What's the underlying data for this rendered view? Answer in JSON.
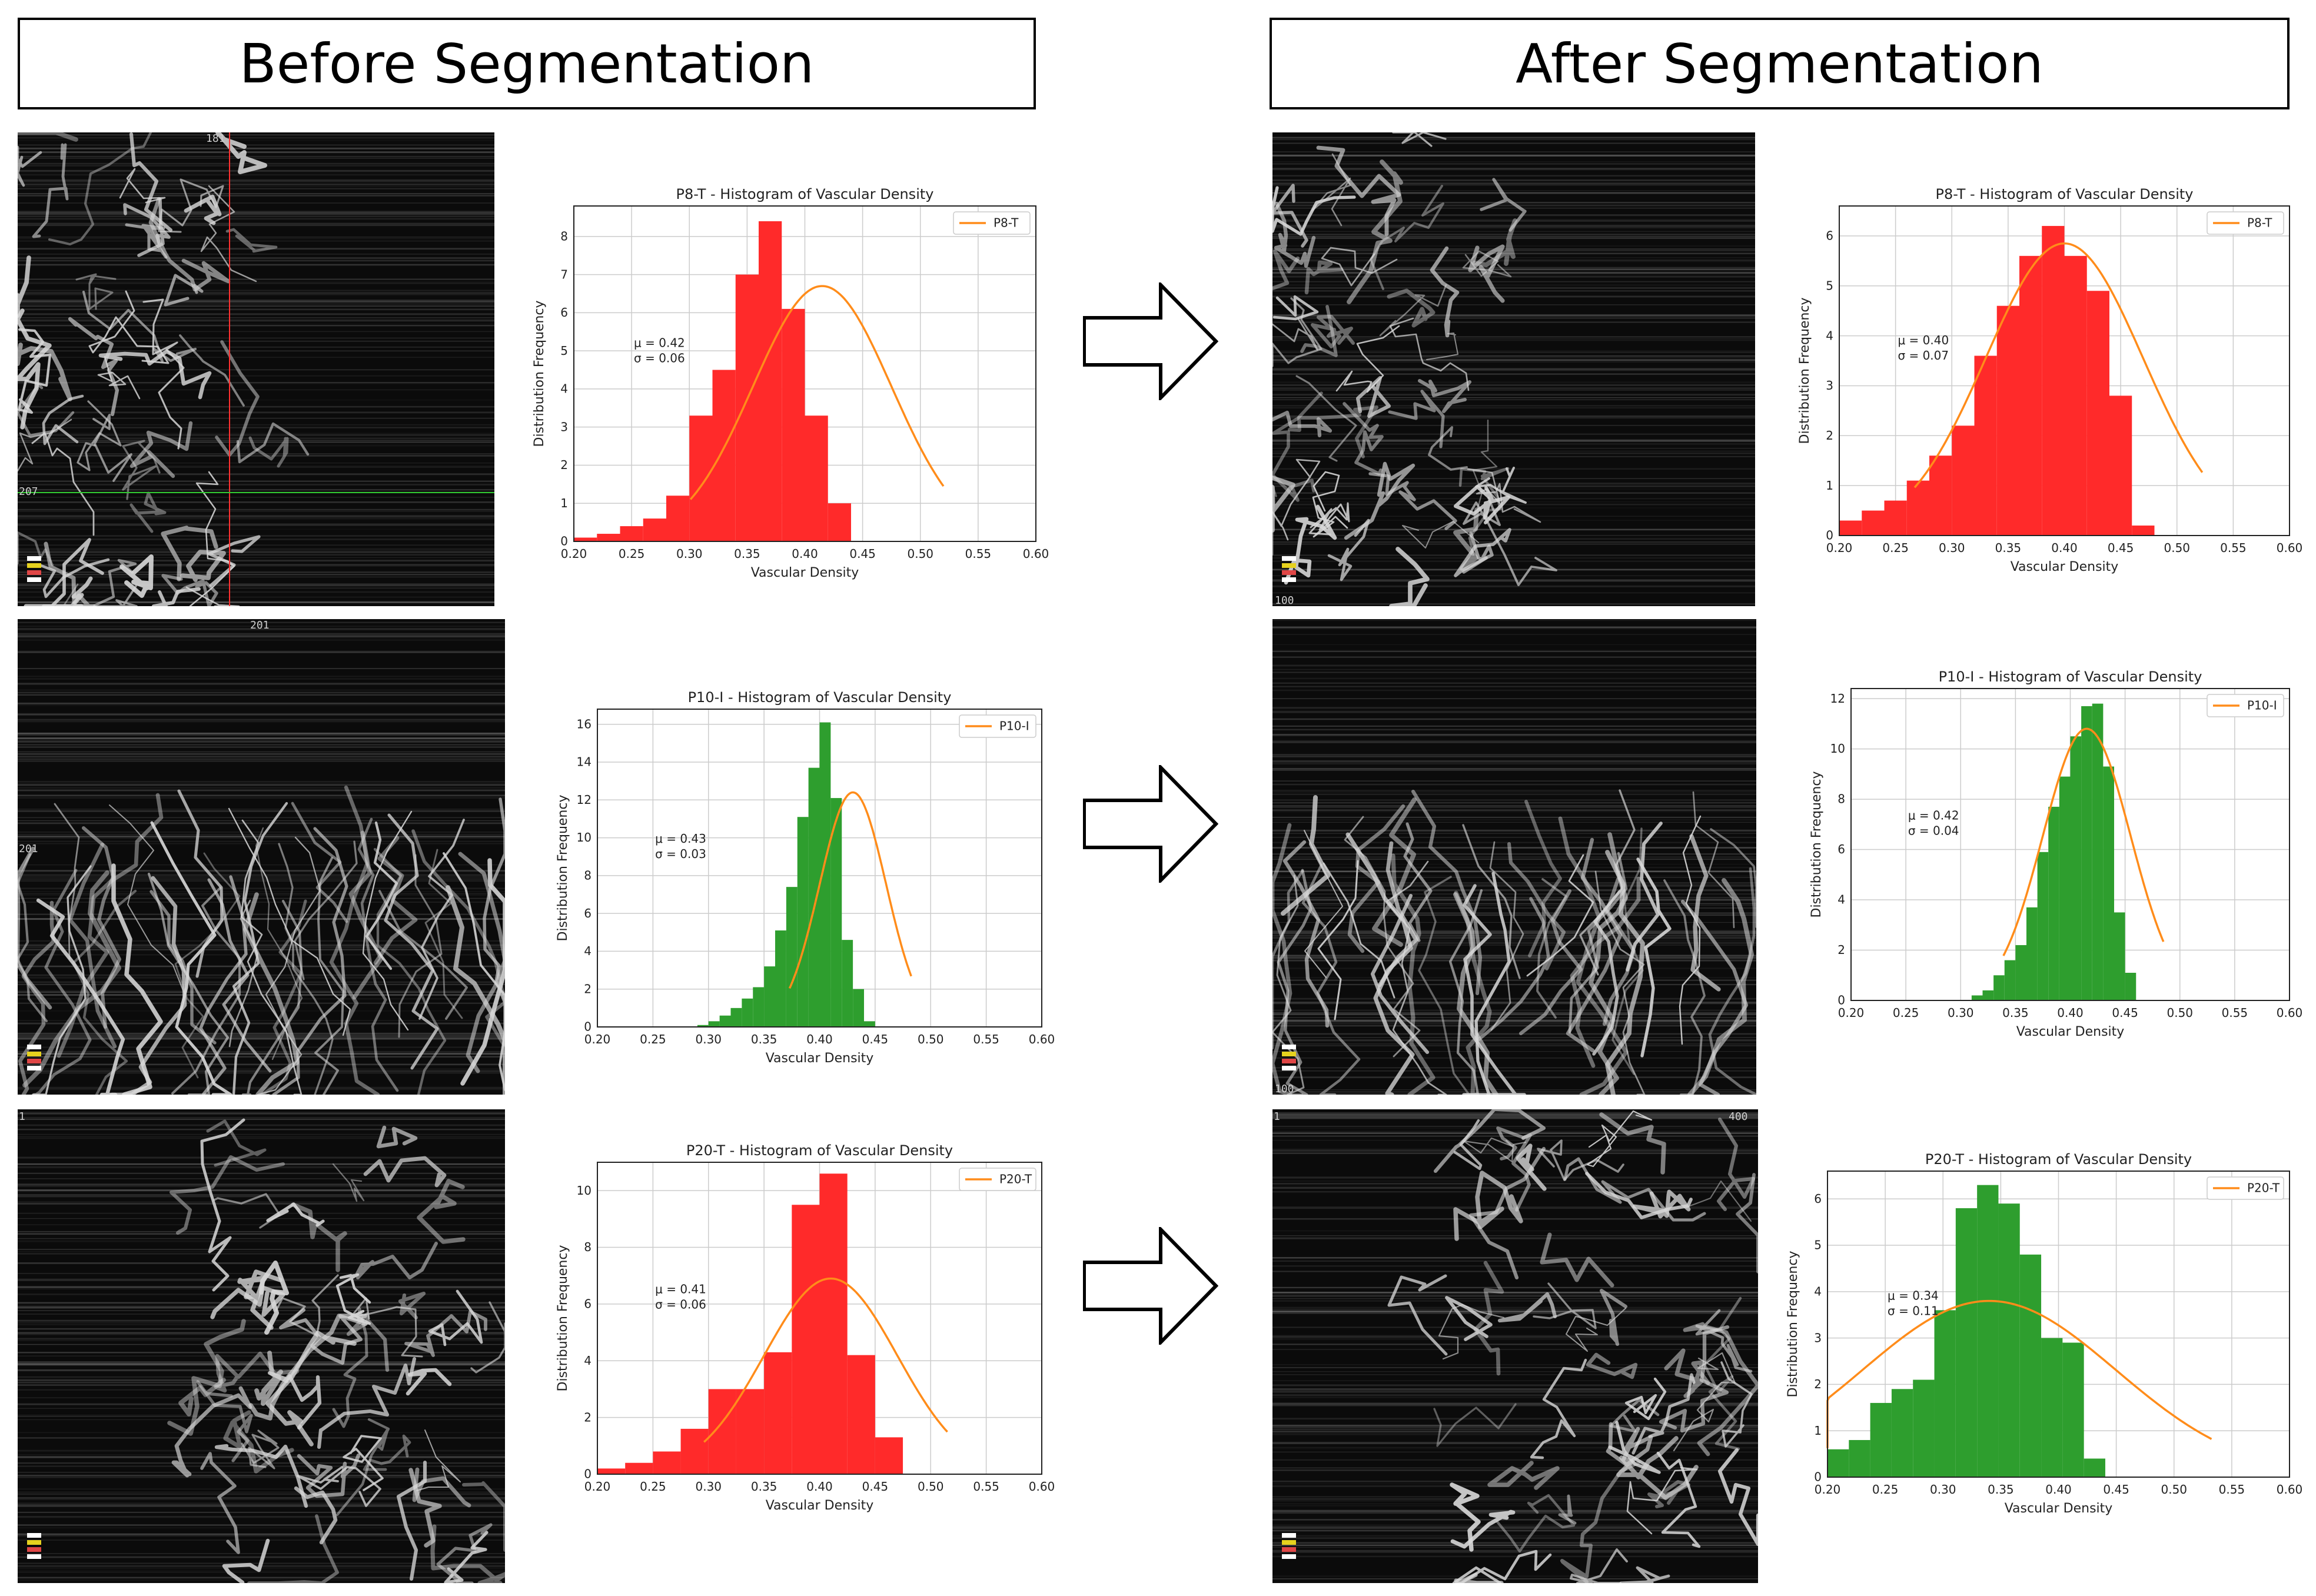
{
  "headers": {
    "before": "Before Segmentation",
    "after": "After Segmentation"
  },
  "colors": {
    "red": "#ff2a2a",
    "green": "#2e9e2e",
    "fit": "#ff8c1a",
    "grid": "#cccccc"
  },
  "images": [
    {
      "key": "b1",
      "labels": [
        "181",
        "207"
      ]
    },
    {
      "key": "b2",
      "labels": [
        "201",
        "201"
      ]
    },
    {
      "key": "b3",
      "labels": [
        "1"
      ]
    },
    {
      "key": "a1",
      "labels": [
        "100"
      ]
    },
    {
      "key": "a2",
      "labels": [
        "100"
      ]
    },
    {
      "key": "a3",
      "labels": [
        "1",
        "400"
      ]
    }
  ],
  "chart_data": [
    {
      "id": "b1",
      "type": "bar",
      "title": "P8-T - Histogram of Vascular Density",
      "legend": "P8-T",
      "xlabel": "Vascular Density",
      "ylabel": "Distribution Frequency",
      "xlim": [
        0.2,
        0.6
      ],
      "ylim": [
        0,
        8.8
      ],
      "xticks": [
        "0.20",
        "0.25",
        "0.30",
        "0.35",
        "0.40",
        "0.45",
        "0.50",
        "0.55",
        "0.60"
      ],
      "yticks": [
        "0",
        "1",
        "2",
        "3",
        "4",
        "5",
        "6",
        "7",
        "8"
      ],
      "bin_start": 0.2,
      "bin_width": 0.02,
      "color": "red",
      "values": [
        0.1,
        0.2,
        0.4,
        0.6,
        1.2,
        3.3,
        4.5,
        7.0,
        8.4,
        6.1,
        3.3,
        1.0
      ],
      "mu": 0.415,
      "sigma": 0.06,
      "peak": 6.7,
      "stats": [
        "μ = 0.42",
        "σ = 0.06"
      ]
    },
    {
      "id": "a1",
      "type": "bar",
      "title": "P8-T - Histogram of Vascular Density",
      "legend": "P8-T",
      "xlabel": "Vascular Density",
      "ylabel": "Distribution Frequency",
      "xlim": [
        0.2,
        0.6
      ],
      "ylim": [
        0,
        6.6
      ],
      "xticks": [
        "0.20",
        "0.25",
        "0.30",
        "0.35",
        "0.40",
        "0.45",
        "0.50",
        "0.55",
        "0.60"
      ],
      "yticks": [
        "0",
        "1",
        "2",
        "3",
        "4",
        "5",
        "6"
      ],
      "bin_start": 0.2,
      "bin_width": 0.02,
      "color": "red",
      "values": [
        0.3,
        0.5,
        0.7,
        1.1,
        1.6,
        2.2,
        3.6,
        4.6,
        5.6,
        6.2,
        5.6,
        4.9,
        2.8,
        0.2
      ],
      "mu": 0.4,
      "sigma": 0.07,
      "peak": 5.85,
      "stats": [
        "μ = 0.40",
        "σ = 0.07"
      ]
    },
    {
      "id": "b2",
      "type": "bar",
      "title": "P10-I - Histogram of Vascular Density",
      "legend": "P10-I",
      "xlabel": "Vascular Density",
      "ylabel": "Distribution Frequency",
      "xlim": [
        0.2,
        0.6
      ],
      "ylim": [
        0,
        16.8
      ],
      "xticks": [
        "0.20",
        "0.25",
        "0.30",
        "0.35",
        "0.40",
        "0.45",
        "0.50",
        "0.55",
        "0.60"
      ],
      "yticks": [
        "0",
        "2",
        "4",
        "6",
        "8",
        "10",
        "12",
        "14",
        "16"
      ],
      "bin_start": 0.29,
      "bin_width": 0.01,
      "color": "green",
      "values": [
        0.1,
        0.3,
        0.6,
        1.0,
        1.5,
        2.1,
        3.2,
        5.1,
        7.4,
        11.1,
        13.7,
        16.1,
        12.1,
        4.6,
        2.0,
        0.3
      ],
      "mu": 0.43,
      "sigma": 0.03,
      "peak": 12.4,
      "stats": [
        "μ = 0.43",
        "σ = 0.03"
      ]
    },
    {
      "id": "a2",
      "type": "bar",
      "title": "P10-I - Histogram of Vascular Density",
      "legend": "P10-I",
      "xlabel": "Vascular Density",
      "ylabel": "Distribution Frequency",
      "xlim": [
        0.2,
        0.6
      ],
      "ylim": [
        0,
        12.4
      ],
      "xticks": [
        "0.20",
        "0.25",
        "0.30",
        "0.35",
        "0.40",
        "0.45",
        "0.50",
        "0.55",
        "0.60"
      ],
      "yticks": [
        "0",
        "2",
        "4",
        "6",
        "8",
        "10",
        "12"
      ],
      "bin_start": 0.31,
      "bin_width": 0.01,
      "color": "green",
      "values": [
        0.2,
        0.4,
        1.0,
        1.6,
        2.2,
        3.7,
        5.9,
        7.7,
        8.9,
        10.5,
        11.7,
        11.8,
        9.3,
        3.5,
        1.1
      ],
      "mu": 0.415,
      "sigma": 0.04,
      "peak": 10.8,
      "stats": [
        "μ = 0.42",
        "σ = 0.04"
      ]
    },
    {
      "id": "b3",
      "type": "bar",
      "title": "P20-T - Histogram of Vascular Density",
      "legend": "P20-T",
      "xlabel": "Vascular Density",
      "ylabel": "Distribution Frequency",
      "xlim": [
        0.2,
        0.6
      ],
      "ylim": [
        0,
        11
      ],
      "xticks": [
        "0.20",
        "0.25",
        "0.30",
        "0.35",
        "0.40",
        "0.45",
        "0.50",
        "0.55",
        "0.60"
      ],
      "yticks": [
        "0",
        "2",
        "4",
        "6",
        "8",
        "10"
      ],
      "bin_start": 0.2,
      "bin_width": 0.025,
      "color": "red",
      "values": [
        0.2,
        0.4,
        0.8,
        1.6,
        3.0,
        3.0,
        4.3,
        9.5,
        10.6,
        4.2,
        1.3
      ],
      "mu": 0.41,
      "sigma": 0.06,
      "peak": 6.9,
      "stats": [
        "μ = 0.41",
        "σ = 0.06"
      ]
    },
    {
      "id": "a3",
      "type": "bar",
      "title": "P20-T - Histogram of Vascular Density",
      "legend": "P20-T",
      "xlabel": "Vascular Density",
      "ylabel": "Distribution Frequency",
      "xlim": [
        0.2,
        0.6
      ],
      "ylim": [
        0,
        6.6
      ],
      "xticks": [
        "0.20",
        "0.25",
        "0.30",
        "0.35",
        "0.40",
        "0.45",
        "0.50",
        "0.55",
        "0.60"
      ],
      "yticks": [
        "0",
        "1",
        "2",
        "3",
        "4",
        "5",
        "6"
      ],
      "bin_start": 0.2,
      "bin_width": 0.0185,
      "color": "green",
      "values": [
        0.6,
        0.8,
        1.6,
        1.9,
        2.1,
        3.6,
        5.8,
        6.3,
        5.9,
        4.8,
        3.0,
        2.9,
        0.4
      ],
      "mu": 0.34,
      "sigma": 0.11,
      "peak": 3.8,
      "stats": [
        "μ = 0.34",
        "σ = 0.11"
      ]
    }
  ]
}
